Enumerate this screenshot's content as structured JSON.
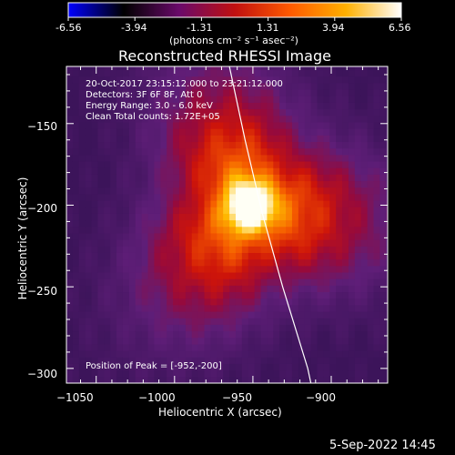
{
  "colorbar": {
    "ticks": [
      "-6.56",
      "-3.94",
      "-1.31",
      "1.31",
      "3.94",
      "6.56"
    ],
    "label": "(photons cm⁻² s⁻¹ asec⁻²)",
    "stops": [
      "#0000ff",
      "#000000",
      "#6a0a6a",
      "#c01010",
      "#ff5a00",
      "#ffb000",
      "#ffffff"
    ]
  },
  "chart_data": {
    "type": "heatmap",
    "title": "Reconstructed RHESSI Image",
    "xlabel": "Heliocentric X (arcsec)",
    "ylabel": "Heliocentric Y (arcsec)",
    "xlim": [
      -1069,
      -864
    ],
    "ylim": [
      -309,
      -115
    ],
    "x_ticks": [
      -1050,
      -1000,
      -950,
      -900
    ],
    "y_ticks": [
      -150,
      -200,
      -250,
      -300
    ],
    "x_tick_labels": [
      "−1050",
      "−1000",
      "−950",
      "−900"
    ],
    "y_tick_labels": [
      "−150",
      "−200",
      "−250",
      "−300"
    ],
    "peak": [
      -952,
      -200
    ],
    "info_lines": [
      "20-Oct-2017 23:15:12.000 to 23:21:12.000",
      "Detectors: 3F 6F 8F, Att 0",
      "Energy Range: 3.0 - 6.0 keV",
      "Clean     Total counts: 1.72E+05"
    ],
    "peak_label": "Position of Peak = [-952,-200]",
    "limb_curve": [
      [
        -965,
        -115
      ],
      [
        -955,
        -160
      ],
      [
        -944,
        -205
      ],
      [
        -931,
        -250
      ],
      [
        -915,
        -300
      ],
      [
        -913,
        -309
      ]
    ]
  },
  "footer": {
    "timestamp": "5-Sep-2022 14:45"
  }
}
